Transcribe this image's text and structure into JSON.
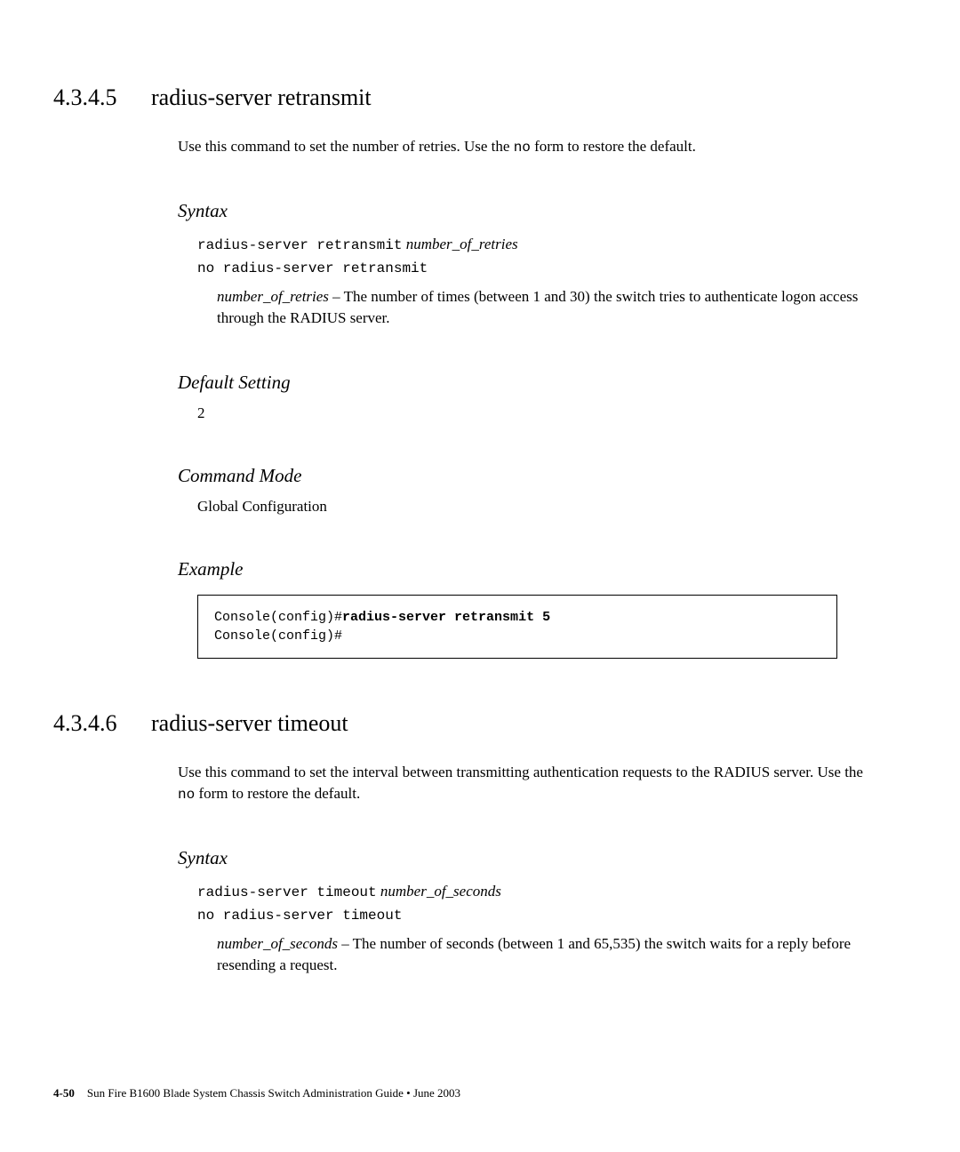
{
  "sections": [
    {
      "number": "4.3.4.5",
      "title": "radius-server retransmit",
      "intro_parts": [
        "Use this command to set the number of retries. Use the ",
        "no",
        " form to restore the default."
      ],
      "syntax": {
        "heading": "Syntax",
        "lines": [
          {
            "code": "radius-server retransmit",
            "param": "number_of_retries"
          },
          {
            "code": "no radius-server retransmit",
            "param": ""
          }
        ],
        "param_desc": {
          "param": "number_of_retries",
          "text": " – The number of times (between 1 and 30) the switch tries to authenticate logon access through the RADIUS server."
        }
      },
      "default_setting": {
        "heading": "Default Setting",
        "value": "2"
      },
      "command_mode": {
        "heading": "Command Mode",
        "value": "Global Configuration"
      },
      "example": {
        "heading": "Example",
        "lines": [
          {
            "prefix": "Console(config)#",
            "bold": "radius-server retransmit 5"
          },
          {
            "prefix": "Console(config)#",
            "bold": ""
          }
        ]
      }
    },
    {
      "number": "4.3.4.6",
      "title": "radius-server timeout",
      "intro_parts": [
        "Use this command to set the interval between transmitting authentication requests to the RADIUS server. Use the ",
        "no",
        " form to restore the default."
      ],
      "syntax": {
        "heading": "Syntax",
        "lines": [
          {
            "code": "radius-server timeout",
            "param": "number_of_seconds"
          },
          {
            "code": "no radius-server timeout",
            "param": ""
          }
        ],
        "param_desc": {
          "param": "number_of_seconds",
          "text": " – The number of seconds (between 1 and 65,535) the switch waits for a reply before resending a request."
        }
      }
    }
  ],
  "footer": {
    "page": "4-50",
    "text": "Sun Fire B1600 Blade System Chassis Switch Administration Guide • June 2003"
  }
}
